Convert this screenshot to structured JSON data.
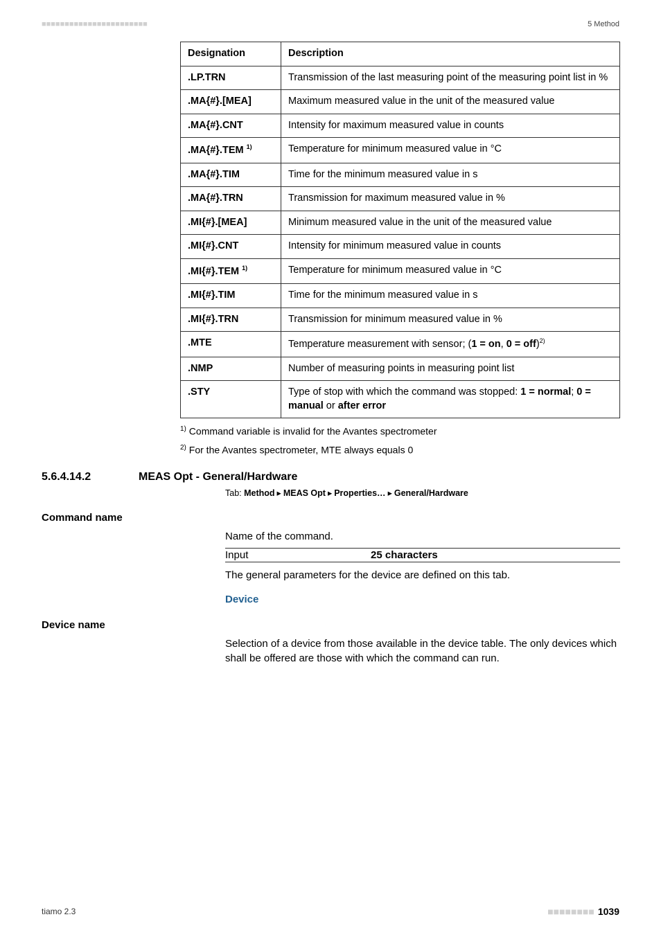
{
  "header": {
    "left_dots": "■■■■■■■■■■■■■■■■■■■■■■■",
    "right": "5 Method"
  },
  "table": {
    "col1_header": "Designation",
    "col2_header": "Description",
    "rows": [
      {
        "designation": ".LP.TRN",
        "description": "Transmission of the last measuring point of the measuring point list in %"
      },
      {
        "designation": ".MA{#}.[MEA]",
        "description": "Maximum measured value in the unit of the measured value"
      },
      {
        "designation": ".MA{#}.CNT",
        "description": "Intensity for maximum measured value in counts"
      },
      {
        "designation": ".MA{#}.TEM",
        "sup": "1)",
        "description": "Temperature for minimum measured value in °C"
      },
      {
        "designation": ".MA{#}.TIM",
        "description": "Time for the minimum measured value in s"
      },
      {
        "designation": ".MA{#}.TRN",
        "description": "Transmission for maximum measured value in %"
      },
      {
        "designation": ".MI{#}.[MEA]",
        "description": "Minimum measured value in the unit of the measured value"
      },
      {
        "designation": ".MI{#}.CNT",
        "description": "Intensity for minimum measured value in counts"
      },
      {
        "designation": ".MI{#}.TEM",
        "sup": "1)",
        "description": "Temperature for minimum measured value in °C"
      },
      {
        "designation": ".MI{#}.TIM",
        "description": "Time for the minimum measured value in s"
      },
      {
        "designation": ".MI{#}.TRN",
        "description": "Transmission for minimum measured value in %"
      },
      {
        "designation": ".MTE",
        "description_html": "Temperature measurement with sensor; (<b>1 = on</b>, <b>0 = off</b>)<sup class='smallsup'>2)</sup>"
      },
      {
        "designation": ".NMP",
        "description": "Number of measuring points in measuring point list"
      },
      {
        "designation": ".STY",
        "description_html": "Type of stop with which the command was stopped: <b>1 = normal</b>; <b>0 = manual</b> or <b>after error</b>"
      }
    ]
  },
  "footnotes": [
    {
      "sup": "1)",
      "text": " Command variable is invalid for the Avantes spectrometer"
    },
    {
      "sup": "2)",
      "text": " For the Avantes spectrometer, MTE always equals 0"
    }
  ],
  "section": {
    "number": "5.6.4.14.2",
    "title": "MEAS Opt - General/Hardware"
  },
  "tab_line": {
    "prefix": "Tab: ",
    "parts": [
      "Method",
      "MEAS Opt",
      "Properties…",
      "General/Hardware"
    ]
  },
  "command_name": {
    "label": "Command name",
    "body": "Name of the command.",
    "input_label": "Input",
    "input_value": "25 characters",
    "followup": "The general parameters for the device are defined on this tab."
  },
  "device": {
    "subhead": "Device",
    "label": "Device name",
    "body": "Selection of a device from those available in the device table. The only devices which shall be offered are those with which the command can run."
  },
  "footer": {
    "left": "tiamo 2.3",
    "right_dots": "■■■■■■■■",
    "right_page": "1039"
  }
}
